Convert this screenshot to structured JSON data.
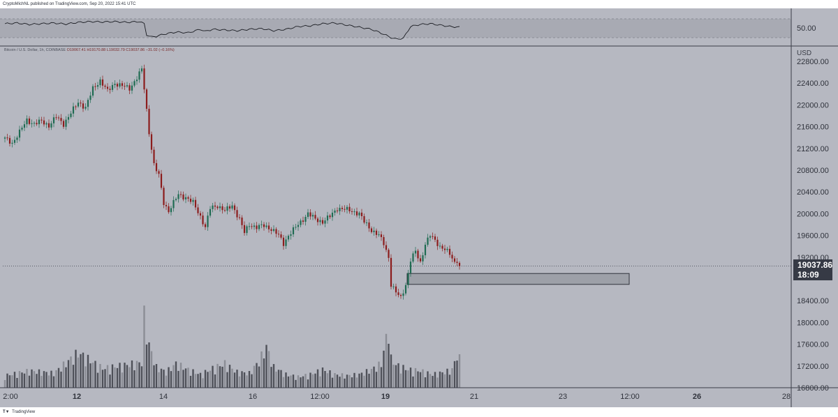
{
  "header": {
    "published_text": "CryptoMichNL published on TradingView.com, Sep 20, 2022 15:41 UTC"
  },
  "symbol": {
    "title": "Bitcoin / U.S. Dollar, 1h, COINBASE",
    "ohlc_text": "O19067.41 H19170.88 L19032.79 C19037.86 −31.02 (−0.16%)"
  },
  "price_axis": {
    "currency": "USD",
    "labels": [
      "22800.00",
      "22400.00",
      "22000.00",
      "21600.00",
      "21200.00",
      "20800.00",
      "20400.00",
      "20000.00",
      "19600.00",
      "19200.00",
      "18400.00",
      "18000.00",
      "17600.00",
      "17200.00",
      "16800.00"
    ]
  },
  "time_axis": {
    "labels": [
      "2:00",
      "12",
      "14",
      "16",
      "12:00",
      "19",
      "21",
      "23",
      "12:00",
      "26",
      "28"
    ]
  },
  "rsi": {
    "level_label": "50.00"
  },
  "last_price": {
    "value": "19037.86",
    "countdown": "18:09"
  },
  "footer": {
    "brand": "TradingView"
  },
  "colors": {
    "background": "#b6b8c1",
    "up": "#1f6b52",
    "down": "#8c1c1c",
    "volume": "#4e5058",
    "zone_fill": "#9da0a8",
    "zone_border": "#2f323b",
    "rsi_band": "#a8aab3"
  },
  "chart_data": {
    "type": "candlestick",
    "symbol": "Bitcoin / U.S. Dollar",
    "interval": "1h",
    "x_ticks": [
      "12",
      "14",
      "16",
      "12:00",
      "19",
      "21",
      "23",
      "12:00",
      "26",
      "28"
    ],
    "ylim": [
      16800,
      22800
    ],
    "support_zone": {
      "low": 18700,
      "high": 18900
    },
    "last_close": 19037.86,
    "close_path": [
      [
        0,
        21380
      ],
      [
        3,
        21300
      ],
      [
        6,
        21500
      ],
      [
        9,
        21720
      ],
      [
        12,
        21650
      ],
      [
        15,
        21700
      ],
      [
        18,
        21620
      ],
      [
        21,
        21780
      ],
      [
        24,
        21650
      ],
      [
        27,
        21850
      ],
      [
        30,
        22050
      ],
      [
        33,
        21950
      ],
      [
        36,
        22300
      ],
      [
        39,
        22450
      ],
      [
        42,
        22250
      ],
      [
        45,
        22400
      ],
      [
        48,
        22350
      ],
      [
        51,
        22300
      ],
      [
        54,
        22500
      ],
      [
        56,
        22650
      ],
      [
        57,
        22300
      ],
      [
        59,
        21500
      ],
      [
        61,
        20900
      ],
      [
        63,
        20700
      ],
      [
        65,
        20200
      ],
      [
        67,
        20050
      ],
      [
        69,
        20200
      ],
      [
        71,
        20350
      ],
      [
        74,
        20300
      ],
      [
        77,
        20200
      ],
      [
        80,
        19950
      ],
      [
        82,
        19750
      ],
      [
        84,
        20100
      ],
      [
        87,
        20150
      ],
      [
        90,
        20050
      ],
      [
        93,
        20150
      ],
      [
        96,
        19900
      ],
      [
        98,
        19650
      ],
      [
        100,
        19800
      ],
      [
        103,
        19750
      ],
      [
        106,
        19780
      ],
      [
        109,
        19720
      ],
      [
        112,
        19600
      ],
      [
        114,
        19450
      ],
      [
        116,
        19600
      ],
      [
        118,
        19700
      ],
      [
        121,
        19850
      ],
      [
        124,
        20000
      ],
      [
        127,
        19900
      ],
      [
        130,
        19850
      ],
      [
        133,
        19950
      ],
      [
        136,
        20100
      ],
      [
        139,
        20080
      ],
      [
        142,
        20050
      ],
      [
        145,
        20000
      ],
      [
        147,
        19850
      ],
      [
        150,
        19700
      ],
      [
        153,
        19600
      ],
      [
        155,
        19450
      ],
      [
        157,
        19200
      ],
      [
        158,
        18700
      ],
      [
        160,
        18550
      ],
      [
        162,
        18450
      ],
      [
        164,
        18700
      ],
      [
        165,
        18900
      ],
      [
        166,
        19150
      ],
      [
        168,
        19300
      ],
      [
        170,
        19100
      ],
      [
        172,
        19450
      ],
      [
        174,
        19600
      ],
      [
        176,
        19500
      ],
      [
        178,
        19400
      ],
      [
        180,
        19350
      ],
      [
        182,
        19250
      ],
      [
        184,
        19100
      ],
      [
        185,
        19150
      ],
      [
        186,
        19037.86
      ]
    ],
    "volume_path": [
      [
        0,
        20
      ],
      [
        10,
        28
      ],
      [
        20,
        24
      ],
      [
        30,
        58
      ],
      [
        40,
        32
      ],
      [
        50,
        38
      ],
      [
        56,
        42
      ],
      [
        57,
        118
      ],
      [
        59,
        70
      ],
      [
        62,
        34
      ],
      [
        66,
        26
      ],
      [
        70,
        40
      ],
      [
        75,
        30
      ],
      [
        80,
        22
      ],
      [
        85,
        32
      ],
      [
        90,
        40
      ],
      [
        95,
        26
      ],
      [
        100,
        24
      ],
      [
        104,
        44
      ],
      [
        107,
        68
      ],
      [
        110,
        34
      ],
      [
        115,
        22
      ],
      [
        120,
        18
      ],
      [
        125,
        22
      ],
      [
        130,
        30
      ],
      [
        135,
        22
      ],
      [
        140,
        20
      ],
      [
        145,
        22
      ],
      [
        150,
        30
      ],
      [
        154,
        40
      ],
      [
        157,
        102
      ],
      [
        158,
        48
      ],
      [
        160,
        38
      ],
      [
        165,
        30
      ],
      [
        170,
        28
      ],
      [
        175,
        22
      ],
      [
        180,
        26
      ],
      [
        183,
        30
      ],
      [
        185,
        55
      ],
      [
        186,
        48
      ]
    ],
    "rsi_path": [
      [
        0,
        60
      ],
      [
        5,
        62
      ],
      [
        10,
        58
      ],
      [
        15,
        60
      ],
      [
        20,
        62
      ],
      [
        25,
        59
      ],
      [
        30,
        64
      ],
      [
        35,
        66
      ],
      [
        40,
        65
      ],
      [
        45,
        66
      ],
      [
        50,
        64
      ],
      [
        55,
        66
      ],
      [
        57,
        60
      ],
      [
        58,
        28
      ],
      [
        60,
        22
      ],
      [
        62,
        24
      ],
      [
        65,
        30
      ],
      [
        70,
        36
      ],
      [
        75,
        34
      ],
      [
        80,
        44
      ],
      [
        82,
        38
      ],
      [
        85,
        44
      ],
      [
        90,
        42
      ],
      [
        95,
        40
      ],
      [
        100,
        44
      ],
      [
        105,
        46
      ],
      [
        110,
        40
      ],
      [
        115,
        44
      ],
      [
        120,
        52
      ],
      [
        125,
        54
      ],
      [
        130,
        60
      ],
      [
        135,
        62
      ],
      [
        140,
        56
      ],
      [
        145,
        50
      ],
      [
        150,
        44
      ],
      [
        155,
        30
      ],
      [
        158,
        20
      ],
      [
        160,
        16
      ],
      [
        163,
        18
      ],
      [
        166,
        52
      ],
      [
        170,
        58
      ],
      [
        174,
        60
      ],
      [
        178,
        56
      ],
      [
        182,
        52
      ],
      [
        186,
        50
      ]
    ]
  }
}
